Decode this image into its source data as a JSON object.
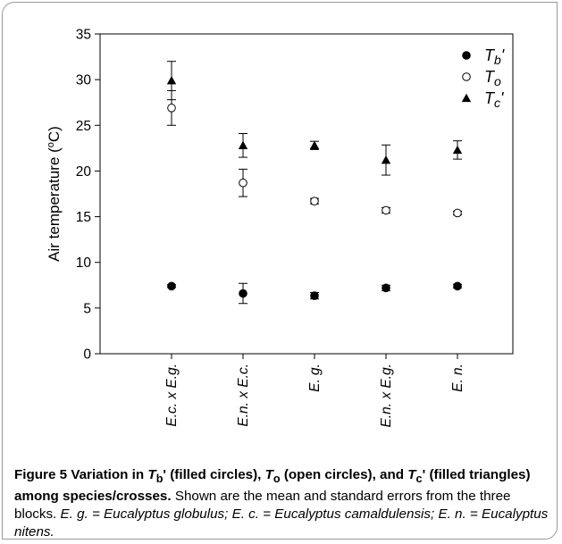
{
  "chart_data": {
    "type": "scatter",
    "ylabel": "Air temperature (",
    "ylabel_sup": "o",
    "ylabel_unit": "C)",
    "ylim": [
      0,
      35
    ],
    "yticks": [
      0,
      5,
      10,
      15,
      20,
      25,
      30,
      35
    ],
    "grid": false,
    "legend_position": "top-right",
    "categories": [
      "E.c. x E.g.",
      "E.n. x E.c.",
      "E. g.",
      "E.n. x E.g.",
      "E. n."
    ],
    "series": [
      {
        "name": "Tb'",
        "name_main": "T",
        "name_sub": "b",
        "name_suffix": "'",
        "marker": "filled-circle",
        "values": [
          7.4,
          6.6,
          6.35,
          7.2,
          7.4
        ],
        "errors": [
          0.15,
          1.1,
          0.35,
          0.3,
          0.2
        ]
      },
      {
        "name": "To",
        "name_main": "T",
        "name_sub": "o",
        "name_suffix": "",
        "marker": "open-circle",
        "values": [
          26.9,
          18.7,
          16.7,
          15.7,
          15.4
        ],
        "errors": [
          1.9,
          1.5,
          0.3,
          0.3,
          0.2
        ]
      },
      {
        "name": "Tc'",
        "name_main": "T",
        "name_sub": "c",
        "name_suffix": "'",
        "marker": "filled-triangle",
        "values": [
          29.9,
          22.8,
          22.8,
          21.2,
          22.3
        ],
        "errors": [
          2.1,
          1.3,
          0.45,
          1.65,
          1.0
        ]
      }
    ]
  },
  "caption": {
    "figure_label": "Figure 5",
    "bold_text": "Variation in Tb' (filled circles), To (open circles), and Tc' (filled triangles) among species/crosses.",
    "b1": "Variation in ",
    "b1_T": "T",
    "b1_sub": "b",
    "b1_after": "' (filled circles), ",
    "b2_T": "T",
    "b2_sub": "o",
    "b2_after": " (open circles), and ",
    "b3_T": "T",
    "b3_sub": "c",
    "b3_after": "'",
    "b4": "(filled triangles) among species/crosses.",
    "plain_text": " Shown are the mean and standard errors from the three blocks. ",
    "italic_text": "E. g. = Eucalyptus globulus; E. c. = Eucalyptus camaldulensis; E. n. = Eucalyptus nitens."
  }
}
